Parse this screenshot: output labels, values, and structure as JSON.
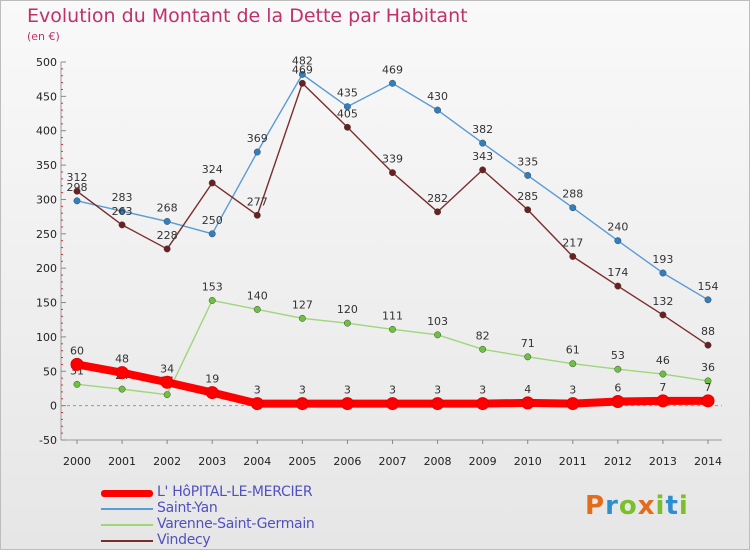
{
  "title": "Evolution du Montant de la Dette par Habitant",
  "subtitle": "(en €)",
  "logo": {
    "text": "Proxiti",
    "letters": [
      "P",
      "r",
      "o",
      "x",
      "i",
      "t",
      "i"
    ],
    "colors": [
      "#e46b1b",
      "#2e8fd0",
      "#7cbf2c",
      "#e46b1b",
      "#7cbf2c",
      "#2e8fd0",
      "#7cbf2c"
    ]
  },
  "chart_data": {
    "type": "line",
    "x": [
      "2000",
      "2001",
      "2002",
      "2003",
      "2004",
      "2005",
      "2006",
      "2007",
      "2008",
      "2009",
      "2010",
      "2011",
      "2012",
      "2013",
      "2014"
    ],
    "ylim": [
      -50,
      500
    ],
    "yticks": [
      -50,
      0,
      50,
      100,
      150,
      200,
      250,
      300,
      350,
      400,
      450,
      500
    ],
    "grid": false,
    "legend_position": "bottom-left",
    "series": [
      {
        "name": "Saint-Yan",
        "color": "#5b9bd5",
        "marker": "#2f80c0",
        "width": 1.4,
        "values": [
          298,
          283,
          268,
          250,
          369,
          482,
          435,
          469,
          430,
          382,
          335,
          288,
          240,
          193,
          154
        ]
      },
      {
        "name": "Vindecy",
        "color": "#7a2d2d",
        "marker": "#6b1f1f",
        "width": 1.4,
        "values": [
          312,
          263,
          228,
          324,
          277,
          469,
          405,
          339,
          282,
          343,
          285,
          217,
          174,
          132,
          88
        ]
      },
      {
        "name": "Varenne-Saint-Germain",
        "color": "#9fd67a",
        "marker": "#6cc23d",
        "width": 1.4,
        "values": [
          31,
          24,
          16,
          153,
          140,
          127,
          120,
          111,
          103,
          82,
          71,
          61,
          53,
          46,
          36
        ]
      },
      {
        "name": "L' HôPITAL-LE-MERCIER",
        "color": "#ff0000",
        "marker": "#ff0000",
        "width": 8,
        "values": [
          60,
          48,
          34,
          19,
          3,
          3,
          3,
          3,
          3,
          3,
          4,
          3,
          6,
          7,
          7
        ]
      }
    ],
    "legend_order": [
      "L' HôPITAL-LE-MERCIER",
      "Saint-Yan",
      "Varenne-Saint-Germain",
      "Vindecy"
    ]
  }
}
